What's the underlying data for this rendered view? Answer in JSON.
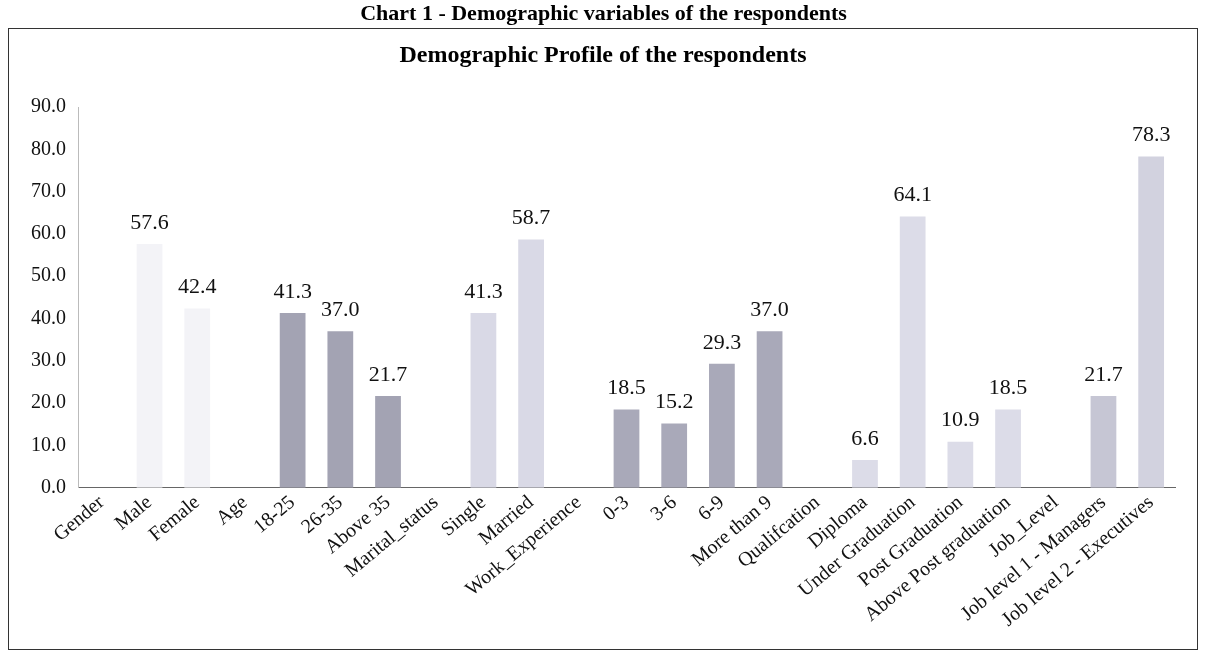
{
  "chart_data": {
    "type": "bar",
    "title": "Chart 1 - Demographic variables of the respondents",
    "subtitle": "Demographic Profile of the respondents",
    "categories": [
      "Gender",
      "Male",
      "Female",
      "Age",
      "18-25",
      "26-35",
      "Above 35",
      "Marital_status",
      "Single",
      "Married",
      "Work_Experience",
      "0-3",
      "3-6",
      "6-9",
      "More than 9",
      "Qualifcation",
      "Diploma",
      "Under Graduation",
      "Post Graduation",
      "Above Post graduation",
      "Job_Level",
      "Job level 1 - Managers",
      "Job level 2 - Executives"
    ],
    "values": [
      null,
      57.6,
      42.4,
      null,
      41.3,
      37.0,
      21.7,
      null,
      41.3,
      58.7,
      null,
      18.5,
      15.2,
      29.3,
      37.0,
      null,
      6.6,
      64.1,
      10.9,
      18.5,
      null,
      21.7,
      78.3
    ],
    "value_labels": [
      null,
      "57.6",
      "42.4",
      null,
      "41.3",
      "37.0",
      "21.7",
      null,
      "41.3",
      "58.7",
      null,
      "18.5",
      "15.2",
      "29.3",
      "37.0",
      null,
      "6.6",
      "64.1",
      "10.9",
      "18.5",
      null,
      "21.7",
      "78.3"
    ],
    "colors": [
      "#ffffff",
      "#f3f3f7",
      "#f3f3f7",
      "#ffffff",
      "#a3a3b3",
      "#a3a3b3",
      "#a3a3b3",
      "#ffffff",
      "#d9d9e6",
      "#d9d9e6",
      "#ffffff",
      "#a9a9b9",
      "#a9a9b9",
      "#a9a9b9",
      "#a9a9b9",
      "#ffffff",
      "#dcdce8",
      "#dcdce8",
      "#dcdce8",
      "#dcdce8",
      "#ffffff",
      "#c6c6d4",
      "#d2d2df"
    ],
    "ylim": [
      0,
      90
    ],
    "yticks": [
      {
        "value": 0,
        "label": "0.0"
      },
      {
        "value": 10,
        "label": "10.0"
      },
      {
        "value": 20,
        "label": "20.0"
      },
      {
        "value": 30,
        "label": "30.0"
      },
      {
        "value": 40,
        "label": "40.0"
      },
      {
        "value": 50,
        "label": "50.0"
      },
      {
        "value": 60,
        "label": "60.0"
      },
      {
        "value": 70,
        "label": "70.0"
      },
      {
        "value": 80,
        "label": "80.0"
      },
      {
        "value": 90,
        "label": "90.0"
      }
    ],
    "grid": false,
    "legend": false
  }
}
